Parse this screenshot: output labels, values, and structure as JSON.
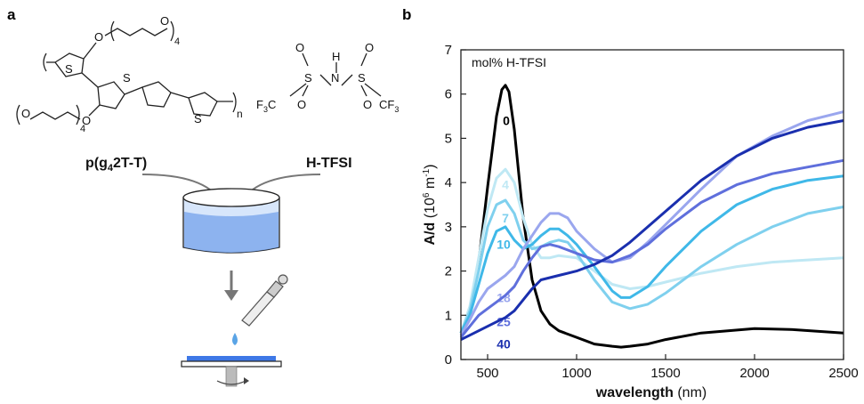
{
  "panel_a": {
    "panel_letter": "a",
    "polymer": {
      "name_main": "p(g",
      "name_sub": "4",
      "name_rest": "2T-T)",
      "atom_S": "S",
      "atom_O": "O",
      "repeat_4": "4",
      "repeat_n": "n"
    },
    "dopant": {
      "name": "H-TFSI",
      "atom_H": "H",
      "atom_N": "N",
      "atom_S": "S",
      "atom_O": "O",
      "cf3_main": "CF",
      "cf3_sub": "3",
      "f3c_main": "F",
      "f3c_sub": "3",
      "f3c_c": "C"
    }
  },
  "panel_b": {
    "panel_letter": "b",
    "legend_title": "mol% H-TFSI",
    "y_label_main": "A/d",
    "y_label_unit_open": " (10",
    "y_label_unit_exp": "6",
    "y_label_unit_m": " m",
    "y_label_unit_exp2": "-1",
    "y_label_unit_close": ")",
    "x_label_main": "wavelength",
    "x_label_unit": " (nm)"
  },
  "chart_data": {
    "type": "line",
    "xlabel": "wavelength (nm)",
    "ylabel": "A/d (10^6 m^-1)",
    "xlim": [
      350,
      2500
    ],
    "ylim": [
      0,
      7
    ],
    "xticks": [
      500,
      1000,
      1500,
      2000,
      2500
    ],
    "yticks": [
      0,
      1,
      2,
      3,
      4,
      5,
      6,
      7
    ],
    "grid": false,
    "legend_title": "mol% H-TFSI",
    "series": [
      {
        "name": "0",
        "color": "#000000",
        "label_at": [
          605,
          5.3
        ],
        "x": [
          350,
          400,
          450,
          500,
          550,
          580,
          600,
          620,
          650,
          700,
          750,
          800,
          850,
          900,
          1000,
          1100,
          1200,
          1250,
          1300,
          1400,
          1500,
          1700,
          2000,
          2200,
          2500
        ],
        "y": [
          0.6,
          1.1,
          2.2,
          3.9,
          5.5,
          6.1,
          6.2,
          6.05,
          5.2,
          3.2,
          1.8,
          1.1,
          0.8,
          0.65,
          0.5,
          0.35,
          0.3,
          0.28,
          0.3,
          0.35,
          0.45,
          0.6,
          0.7,
          0.68,
          0.6
        ]
      },
      {
        "name": "4",
        "color": "#bfe8f4",
        "label_at": [
          600,
          3.85
        ],
        "x": [
          350,
          400,
          450,
          500,
          550,
          600,
          650,
          700,
          750,
          800,
          850,
          900,
          1000,
          1100,
          1200,
          1300,
          1400,
          1500,
          1700,
          1900,
          2100,
          2300,
          2500
        ],
        "y": [
          0.6,
          1.2,
          2.3,
          3.4,
          4.1,
          4.3,
          4.0,
          3.2,
          2.6,
          2.3,
          2.3,
          2.35,
          2.3,
          2.0,
          1.7,
          1.6,
          1.65,
          1.75,
          1.95,
          2.1,
          2.2,
          2.25,
          2.3
        ]
      },
      {
        "name": "7",
        "color": "#7fd0ee",
        "label_at": [
          600,
          3.1
        ],
        "x": [
          350,
          400,
          450,
          500,
          550,
          600,
          650,
          700,
          750,
          800,
          850,
          900,
          950,
          1000,
          1100,
          1200,
          1300,
          1400,
          1500,
          1700,
          1900,
          2100,
          2300,
          2500
        ],
        "y": [
          0.6,
          1.1,
          2.0,
          3.0,
          3.5,
          3.6,
          3.3,
          2.7,
          2.5,
          2.55,
          2.65,
          2.7,
          2.65,
          2.4,
          1.8,
          1.3,
          1.15,
          1.25,
          1.5,
          2.1,
          2.6,
          3.0,
          3.3,
          3.45
        ]
      },
      {
        "name": "10",
        "color": "#3fb8e8",
        "label_at": [
          590,
          2.5
        ],
        "x": [
          350,
          400,
          450,
          500,
          550,
          600,
          650,
          700,
          750,
          800,
          850,
          900,
          950,
          1000,
          1100,
          1200,
          1250,
          1300,
          1400,
          1500,
          1700,
          1900,
          2100,
          2300,
          2500
        ],
        "y": [
          0.6,
          1.0,
          1.7,
          2.4,
          2.9,
          3.0,
          2.7,
          2.5,
          2.6,
          2.8,
          2.95,
          2.95,
          2.8,
          2.6,
          2.1,
          1.55,
          1.4,
          1.4,
          1.65,
          2.1,
          2.9,
          3.5,
          3.85,
          4.05,
          4.15
        ]
      },
      {
        "name": "18",
        "color": "#9aa6ee",
        "label_at": [
          590,
          1.3
        ],
        "x": [
          350,
          400,
          450,
          500,
          550,
          600,
          650,
          700,
          750,
          800,
          850,
          900,
          950,
          1000,
          1100,
          1200,
          1300,
          1400,
          1500,
          1700,
          1900,
          2100,
          2300,
          2500
        ],
        "y": [
          0.55,
          0.9,
          1.3,
          1.6,
          1.75,
          1.9,
          2.1,
          2.5,
          2.8,
          3.1,
          3.3,
          3.3,
          3.2,
          2.9,
          2.5,
          2.2,
          2.3,
          2.65,
          3.05,
          3.85,
          4.6,
          5.05,
          5.4,
          5.6
        ]
      },
      {
        "name": "25",
        "color": "#5f6fdc",
        "label_at": [
          590,
          0.75
        ],
        "x": [
          350,
          400,
          450,
          500,
          550,
          600,
          650,
          700,
          750,
          800,
          850,
          900,
          1000,
          1100,
          1200,
          1300,
          1400,
          1500,
          1700,
          1900,
          2100,
          2300,
          2500
        ],
        "y": [
          0.5,
          0.75,
          1.0,
          1.15,
          1.3,
          1.45,
          1.65,
          2.0,
          2.3,
          2.55,
          2.6,
          2.55,
          2.4,
          2.25,
          2.2,
          2.35,
          2.6,
          2.95,
          3.55,
          3.95,
          4.2,
          4.35,
          4.5
        ]
      },
      {
        "name": "40",
        "color": "#1a2fae",
        "label_at": [
          590,
          0.25
        ],
        "x": [
          350,
          400,
          450,
          500,
          550,
          600,
          650,
          700,
          750,
          800,
          900,
          1000,
          1100,
          1200,
          1300,
          1400,
          1500,
          1700,
          1900,
          2100,
          2300,
          2500
        ],
        "y": [
          0.45,
          0.55,
          0.65,
          0.75,
          0.85,
          0.95,
          1.1,
          1.35,
          1.6,
          1.8,
          1.9,
          2.0,
          2.15,
          2.35,
          2.65,
          3.0,
          3.35,
          4.05,
          4.6,
          5.0,
          5.25,
          5.4
        ]
      }
    ]
  }
}
